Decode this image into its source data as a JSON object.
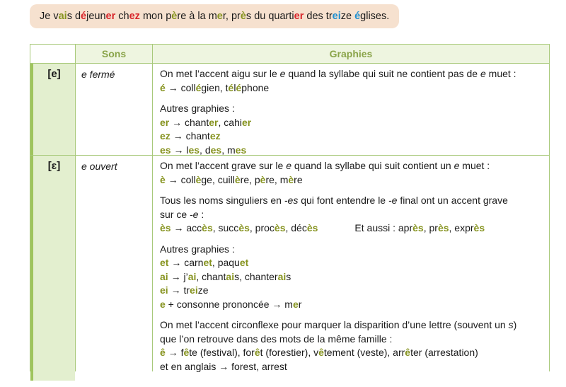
{
  "banner": {
    "segments": [
      {
        "t": "Je v",
        "c": ""
      },
      {
        "t": "ai",
        "c": "g"
      },
      {
        "t": "s ",
        "c": ""
      },
      {
        "t": "d",
        "c": ""
      },
      {
        "t": "é",
        "c": "r"
      },
      {
        "t": "jeun",
        "c": ""
      },
      {
        "t": "er",
        "c": "r"
      },
      {
        "t": " ch",
        "c": ""
      },
      {
        "t": "ez",
        "c": "r"
      },
      {
        "t": " mon p",
        "c": ""
      },
      {
        "t": "è",
        "c": "g"
      },
      {
        "t": "re à la m",
        "c": ""
      },
      {
        "t": "e",
        "c": "g"
      },
      {
        "t": "r, pr",
        "c": ""
      },
      {
        "t": "è",
        "c": "g"
      },
      {
        "t": "s du quarti",
        "c": ""
      },
      {
        "t": "er",
        "c": "r"
      },
      {
        "t": " des tr",
        "c": ""
      },
      {
        "t": "ei",
        "c": "b"
      },
      {
        "t": "ze ",
        "c": ""
      },
      {
        "t": "é",
        "c": "b"
      },
      {
        "t": "glises.",
        "c": ""
      }
    ]
  },
  "table": {
    "headers": {
      "sons": "Sons",
      "graphies": "Graphies"
    },
    "rows": [
      {
        "symbol": "[e]",
        "son": "e fermé",
        "blocks": [
          [
            [
              {
                "t": "On met l’accent aigu sur le "
              },
              {
                "t": "e",
                "s": "i"
              },
              {
                "t": " quand la syllabe qui suit ne contient pas de "
              },
              {
                "t": "e",
                "s": "i"
              },
              {
                "t": " muet :"
              }
            ],
            [
              {
                "t": "é",
                "s": "g"
              },
              {
                "t": " → coll"
              },
              {
                "t": "é",
                "s": "g"
              },
              {
                "t": "gien, t"
              },
              {
                "t": "é",
                "s": "g"
              },
              {
                "t": "l"
              },
              {
                "t": "é",
                "s": "g"
              },
              {
                "t": "phone"
              }
            ]
          ],
          [
            [
              {
                "t": "Autres graphies :"
              }
            ],
            [
              {
                "t": "er",
                "s": "g"
              },
              {
                "t": " → chant"
              },
              {
                "t": "er",
                "s": "g"
              },
              {
                "t": ", cahi"
              },
              {
                "t": "er",
                "s": "g"
              }
            ],
            [
              {
                "t": "ez",
                "s": "g"
              },
              {
                "t": " → chant"
              },
              {
                "t": "ez",
                "s": "g"
              }
            ],
            [
              {
                "t": "es",
                "s": "g"
              },
              {
                "t": " → l"
              },
              {
                "t": "es",
                "s": "g"
              },
              {
                "t": ", d"
              },
              {
                "t": "es",
                "s": "g"
              },
              {
                "t": ", m"
              },
              {
                "t": "es",
                "s": "g"
              }
            ]
          ]
        ]
      },
      {
        "symbol": "[ɛ]",
        "son": "e ouvert",
        "blocks": [
          [
            [
              {
                "t": "On met l’accent grave sur le "
              },
              {
                "t": "e",
                "s": "i"
              },
              {
                "t": " quand la syllabe qui suit contient un "
              },
              {
                "t": "e",
                "s": "i"
              },
              {
                "t": " muet :"
              }
            ],
            [
              {
                "t": "è",
                "s": "g"
              },
              {
                "t": " → coll"
              },
              {
                "t": "è",
                "s": "g"
              },
              {
                "t": "ge, cuill"
              },
              {
                "t": "è",
                "s": "g"
              },
              {
                "t": "re, p"
              },
              {
                "t": "è",
                "s": "g"
              },
              {
                "t": "re, m"
              },
              {
                "t": "è",
                "s": "g"
              },
              {
                "t": "re"
              }
            ]
          ],
          [
            [
              {
                "t": "Tous les noms singuliers en "
              },
              {
                "t": "-es",
                "s": "i"
              },
              {
                "t": " qui font entendre le "
              },
              {
                "t": "-e",
                "s": "i"
              },
              {
                "t": " final ont un accent grave"
              }
            ],
            [
              {
                "t": "sur ce "
              },
              {
                "t": "-e",
                "s": "i"
              },
              {
                "t": " :"
              }
            ],
            [
              {
                "t": "ès",
                "s": "g"
              },
              {
                "t": " → acc"
              },
              {
                "t": "ès",
                "s": "g"
              },
              {
                "t": ", succ"
              },
              {
                "t": "ès",
                "s": "g"
              },
              {
                "t": ", proc"
              },
              {
                "t": "ès",
                "s": "g"
              },
              {
                "t": ", déc"
              },
              {
                "t": "ès",
                "s": "g"
              },
              {
                "t": "Et aussi : apr",
                "s": "aussi"
              },
              {
                "t": "ès",
                "s": "g"
              },
              {
                "t": ", pr"
              },
              {
                "t": "ès",
                "s": "g"
              },
              {
                "t": ", expr"
              },
              {
                "t": "ès",
                "s": "g"
              }
            ]
          ],
          [
            [
              {
                "t": "Autres graphies :"
              }
            ],
            [
              {
                "t": "et",
                "s": "g"
              },
              {
                "t": " → carn"
              },
              {
                "t": "et",
                "s": "g"
              },
              {
                "t": ", paqu"
              },
              {
                "t": "et",
                "s": "g"
              }
            ],
            [
              {
                "t": "ai",
                "s": "g"
              },
              {
                "t": " → j’"
              },
              {
                "t": "ai",
                "s": "g"
              },
              {
                "t": ", chant"
              },
              {
                "t": "ai",
                "s": "g"
              },
              {
                "t": "s, chanter"
              },
              {
                "t": "ai",
                "s": "g"
              },
              {
                "t": "s"
              }
            ],
            [
              {
                "t": "ei",
                "s": "g"
              },
              {
                "t": " → tr"
              },
              {
                "t": "ei",
                "s": "g"
              },
              {
                "t": "ze"
              }
            ],
            [
              {
                "t": "e",
                "s": "g"
              },
              {
                "t": " + consonne prononcée → m"
              },
              {
                "t": "e",
                "s": "g"
              },
              {
                "t": "r"
              }
            ]
          ],
          [
            [
              {
                "t": "On met l’accent circonflexe pour marquer la disparition d’une lettre (souvent un "
              },
              {
                "t": "s",
                "s": "i"
              },
              {
                "t": ")"
              }
            ],
            [
              {
                "t": "que l’on retrouve dans des mots de la même famille :"
              }
            ],
            [
              {
                "t": "ê",
                "s": "g"
              },
              {
                "t": " → f"
              },
              {
                "t": "ê",
                "s": "g"
              },
              {
                "t": "te (festival), for"
              },
              {
                "t": "ê",
                "s": "g"
              },
              {
                "t": "t (forestier), v"
              },
              {
                "t": "ê",
                "s": "g"
              },
              {
                "t": "tement (veste), arr"
              },
              {
                "t": "ê",
                "s": "g"
              },
              {
                "t": "ter (arrestation)"
              }
            ],
            [
              {
                "t": "et en anglais → forest, arrest"
              }
            ]
          ]
        ]
      }
    ]
  }
}
